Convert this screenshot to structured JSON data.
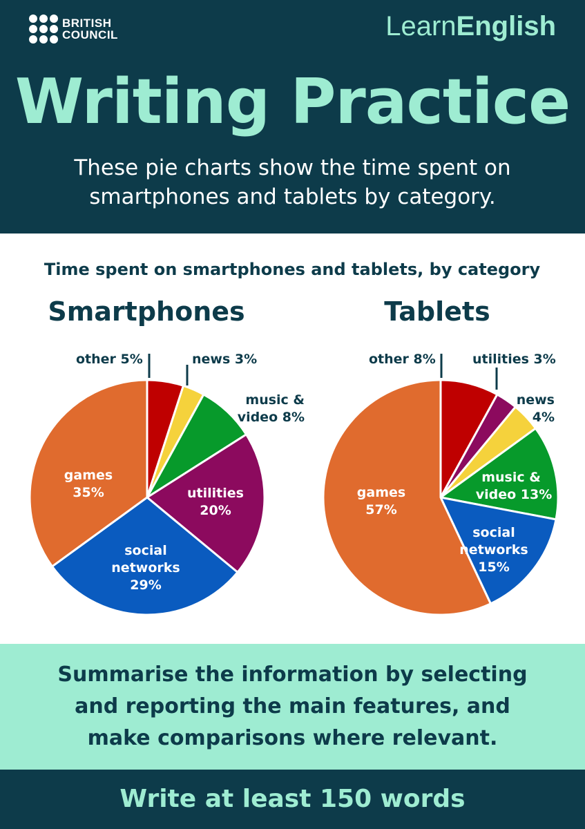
{
  "header": {
    "logo_lines": [
      "BRITISH",
      "COUNCIL"
    ],
    "brand_regular": "Learn",
    "brand_bold": "English",
    "title": "Writing Practice",
    "subtitle_lines": [
      "These pie charts show the time spent on",
      "smartphones and tablets by category."
    ]
  },
  "colors": {
    "navy": "#0d3b4a",
    "mint": "#9eecd2",
    "games": "#e06b2e",
    "social_networks": "#0a5bbf",
    "utilities": "#8c0a5e",
    "music_video": "#079a2b",
    "news": "#f5d23c",
    "other": "#bf0000"
  },
  "chart_data": {
    "title": "Time spent on smartphones and tablets, by category",
    "charts": [
      {
        "type": "pie",
        "title": "Smartphones",
        "slices": [
          {
            "label": "other",
            "value": 5,
            "text": "other 5%",
            "color": "#bf0000"
          },
          {
            "label": "news",
            "value": 3,
            "text": "news 3%",
            "color": "#f5d23c"
          },
          {
            "label": "music & video",
            "value": 8,
            "text": "music & video 8%",
            "color": "#079a2b"
          },
          {
            "label": "utilities",
            "value": 20,
            "text": "utilities 20%",
            "color": "#8c0a5e"
          },
          {
            "label": "social networks",
            "value": 29,
            "text": "social networks 29%",
            "color": "#0a5bbf"
          },
          {
            "label": "games",
            "value": 35,
            "text": "games 35%",
            "color": "#e06b2e"
          }
        ]
      },
      {
        "type": "pie",
        "title": "Tablets",
        "slices": [
          {
            "label": "other",
            "value": 8,
            "text": "other 8%",
            "color": "#bf0000"
          },
          {
            "label": "utilities",
            "value": 3,
            "text": "utilities 3%",
            "color": "#8c0a5e"
          },
          {
            "label": "news",
            "value": 4,
            "text": "news 4%",
            "color": "#f5d23c"
          },
          {
            "label": "music & video",
            "value": 13,
            "text": "music & video 13%",
            "color": "#079a2b"
          },
          {
            "label": "social networks",
            "value": 15,
            "text": "social networks 15%",
            "color": "#0a5bbf"
          },
          {
            "label": "games",
            "value": 57,
            "text": "games 57%",
            "color": "#e06b2e"
          }
        ]
      }
    ]
  },
  "instruction_lines": [
    "Summarise the information by selecting",
    "and reporting the main features, and",
    "make comparisons where relevant."
  ],
  "footer": {
    "text": "Write at least 150 words"
  }
}
